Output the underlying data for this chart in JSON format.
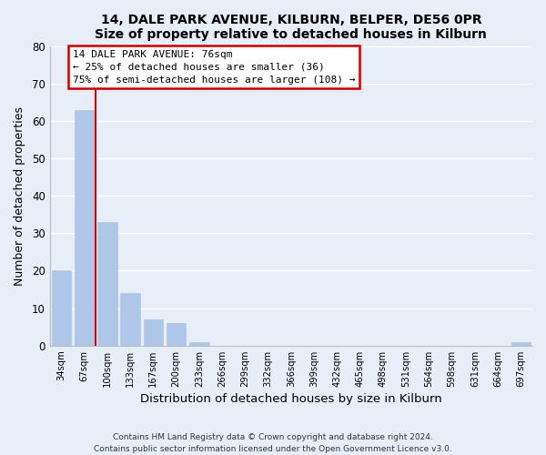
{
  "title": "14, DALE PARK AVENUE, KILBURN, BELPER, DE56 0PR",
  "subtitle": "Size of property relative to detached houses in Kilburn",
  "xlabel": "Distribution of detached houses by size in Kilburn",
  "ylabel": "Number of detached properties",
  "bar_labels": [
    "34sqm",
    "67sqm",
    "100sqm",
    "133sqm",
    "167sqm",
    "200sqm",
    "233sqm",
    "266sqm",
    "299sqm",
    "332sqm",
    "366sqm",
    "399sqm",
    "432sqm",
    "465sqm",
    "498sqm",
    "531sqm",
    "564sqm",
    "598sqm",
    "631sqm",
    "664sqm",
    "697sqm"
  ],
  "bar_values": [
    20,
    63,
    33,
    14,
    7,
    6,
    1,
    0,
    0,
    0,
    0,
    0,
    0,
    0,
    0,
    0,
    0,
    0,
    0,
    0,
    1
  ],
  "bar_color": "#aec6e8",
  "bar_edge_color": "#aec6e8",
  "ylim": [
    0,
    80
  ],
  "yticks": [
    0,
    10,
    20,
    30,
    40,
    50,
    60,
    70,
    80
  ],
  "property_line_x": 1.5,
  "annotation_title": "14 DALE PARK AVENUE: 76sqm",
  "annotation_line1": "← 25% of detached houses are smaller (36)",
  "annotation_line2": "75% of semi-detached houses are larger (108) →",
  "annotation_box_color": "#ffffff",
  "annotation_box_edge": "#cc0000",
  "vline_color": "#cc0000",
  "footer1": "Contains HM Land Registry data © Crown copyright and database right 2024.",
  "footer2": "Contains public sector information licensed under the Open Government Licence v3.0.",
  "bg_color": "#e8eef7",
  "grid_color": "#ffffff"
}
